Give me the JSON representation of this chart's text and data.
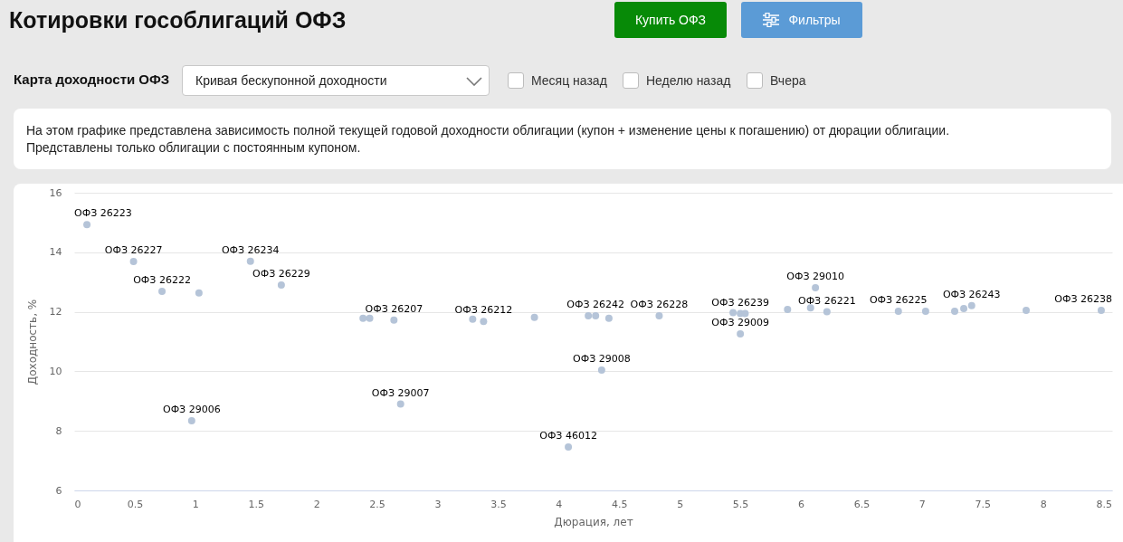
{
  "chart_data": {
    "type": "scatter",
    "title": "Котировки гособлигаций ОФЗ",
    "subtitle": "На этом графике представлена зависимость полной текущей годовой доходности облигации (купон + изменение цены к погашению) от дюрации облигации.",
    "annotations": [
      "Купить ОФЗ",
      "Фильтры",
      "Карта доходности ОФЗ",
      "Кривая бескупонной доходности",
      "Месяц назад",
      "Неделю назад",
      "Вчера",
      "Представлены только облигации с постоянным купоном."
    ],
    "xlabel": "Дюрация, лет",
    "ylabel": "Доходность, %",
    "series": [
      {
        "color": "#b5c4d8",
        "x": [
          0.105,
          0.49,
          0.725,
          0.97,
          1.03,
          1.455,
          1.71,
          2.385,
          2.44,
          2.64,
          2.695,
          3.29,
          3.38,
          3.8,
          4.08,
          4.245,
          4.305,
          4.355,
          4.415,
          4.83,
          5.44,
          5.5,
          5.5,
          5.54,
          5.89,
          6.08,
          6.12,
          6.215,
          6.805,
          7.03,
          7.27,
          7.345,
          7.41,
          7.86,
          8.48
        ],
        "values": [
          14.93,
          13.69,
          12.69,
          8.34,
          12.63,
          13.7,
          12.9,
          11.78,
          11.78,
          11.72,
          8.9,
          11.75,
          11.68,
          11.81,
          7.46,
          11.87,
          11.87,
          10.04,
          11.78,
          11.87,
          11.97,
          11.94,
          11.26,
          11.94,
          12.08,
          12.13,
          12.81,
          12.0,
          12.02,
          12.02,
          12.02,
          12.11,
          12.21,
          12.05,
          12.05
        ],
        "value_labels": [
          "ОФЗ 26223",
          "ОФЗ 26227",
          "ОФЗ 26222",
          "ОФЗ 29006",
          null,
          "ОФЗ 26234",
          "ОФЗ 26229",
          null,
          null,
          "ОФЗ 26207",
          "ОФЗ 29007",
          null,
          "ОФЗ 26212",
          null,
          "ОФЗ 46012",
          null,
          "ОФЗ 26242",
          "ОФЗ 29008",
          null,
          "ОФЗ 26228",
          null,
          "ОФЗ 26239",
          "ОФЗ 29009",
          null,
          null,
          null,
          "ОФЗ 29010",
          "ОФЗ 26221",
          "ОФЗ 26225",
          null,
          null,
          null,
          "ОФЗ 26243",
          null,
          "ОФЗ 26238"
        ]
      }
    ],
    "xlim": [
      0,
      8.57
    ],
    "xticks": [
      0,
      0.5,
      1,
      1.5,
      2,
      2.5,
      3,
      3.5,
      4,
      4.5,
      5,
      5.5,
      6,
      6.5,
      7,
      7.5,
      8,
      8.5
    ],
    "ylim": [
      6,
      16
    ],
    "yticks": [
      6,
      8,
      10,
      12,
      14,
      16
    ],
    "grid": "y",
    "marker": "circle"
  }
}
